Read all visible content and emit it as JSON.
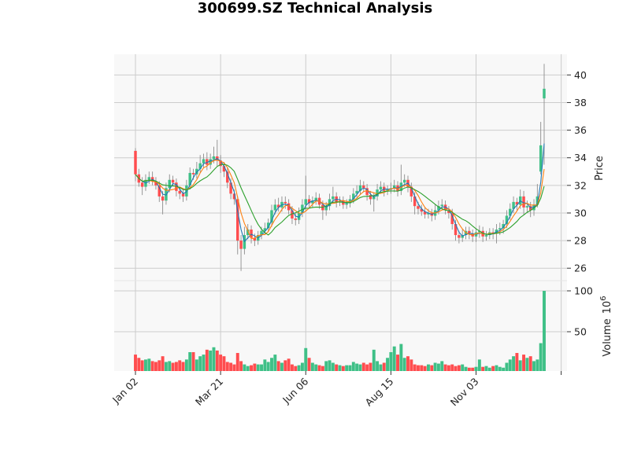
{
  "title": "300699.SZ Technical Analysis",
  "chart_data": {
    "type": "candlestick",
    "title": "300699.SZ Technical Analysis",
    "x_tick_labels": [
      "Jan 02",
      "Mar 21",
      "Jun 06",
      "Aug 15",
      "Nov 03",
      ""
    ],
    "price_panel": {
      "ylabel": "Price",
      "ylim": [
        25.1,
        41.5
      ],
      "yticks": [
        26,
        28,
        30,
        32,
        34,
        36,
        38,
        40
      ],
      "moving_average_colors": [
        "#1f77b4",
        "#ff7f0e",
        "#2ca02c"
      ],
      "up_color": "#3fc087",
      "down_color": "#ff4d4f",
      "open": [
        34.5,
        32.8,
        32.2,
        31.9,
        32.4,
        32.6,
        32.3,
        32.0,
        31.2,
        30.9,
        31.8,
        32.4,
        32.2,
        31.6,
        31.4,
        31.2,
        32.0,
        32.9,
        32.8,
        33.2,
        33.6,
        33.9,
        33.5,
        33.9,
        34.1,
        33.8,
        33.4,
        33.0,
        32.2,
        31.4,
        31.0,
        28.0,
        27.4,
        28.4,
        28.8,
        28.2,
        28.0,
        28.4,
        28.7,
        28.9,
        29.3,
        30.2,
        30.6,
        30.4,
        30.8,
        30.7,
        30.2,
        29.6,
        29.5,
        30.0,
        30.6,
        31.0,
        30.7,
        30.9,
        31.1,
        30.6,
        30.2,
        30.5,
        31.0,
        31.2,
        30.8,
        30.9,
        30.6,
        30.7,
        31.0,
        31.4,
        31.6,
        32.0,
        31.8,
        31.3,
        31.0,
        31.2,
        31.7,
        31.9,
        31.6,
        31.7,
        31.8,
        32.0,
        31.6,
        32.2,
        32.4,
        31.9,
        31.2,
        30.5,
        30.3,
        30.1,
        29.9,
        30.0,
        29.8,
        30.2,
        30.5,
        30.6,
        30.2,
        30.0,
        29.2,
        28.4,
        28.2,
        28.4,
        28.7,
        28.5,
        28.3,
        28.6,
        28.7,
        28.3,
        28.4,
        28.6,
        28.5,
        28.8,
        28.9,
        29.2,
        29.8,
        30.3,
        30.8,
        30.6,
        31.2,
        30.4,
        30.5,
        30.2,
        30.6,
        33.0,
        38.3
      ],
      "high": [
        34.7,
        33.2,
        32.6,
        32.8,
        33.0,
        33.0,
        32.6,
        32.3,
        31.6,
        32.2,
        32.8,
        32.7,
        32.5,
        31.9,
        31.7,
        32.4,
        33.3,
        33.2,
        33.7,
        34.2,
        34.3,
        34.4,
        34.3,
        34.8,
        35.3,
        34.2,
        33.7,
        33.3,
        32.5,
        31.7,
        31.2,
        28.4,
        29.0,
        29.2,
        29.1,
        28.5,
        28.7,
        29.0,
        29.3,
        29.6,
        30.6,
        31.0,
        31.1,
        31.2,
        31.2,
        31.0,
        30.5,
        30.0,
        30.4,
        31.0,
        32.7,
        31.3,
        31.2,
        31.5,
        31.4,
        30.9,
        30.8,
        31.4,
        31.9,
        31.5,
        31.2,
        31.2,
        31.0,
        31.3,
        31.8,
        32.0,
        32.4,
        32.3,
        32.1,
        31.6,
        31.5,
        32.1,
        32.3,
        32.2,
        32.0,
        32.2,
        32.4,
        32.3,
        33.5,
        32.8,
        32.7,
        32.2,
        31.5,
        30.8,
        30.6,
        30.4,
        30.3,
        30.3,
        30.6,
        30.9,
        31.0,
        30.9,
        30.5,
        30.3,
        29.5,
        28.7,
        28.8,
        29.0,
        29.0,
        28.8,
        28.9,
        29.1,
        29.0,
        28.7,
        28.9,
        28.9,
        29.2,
        29.3,
        29.5,
        30.2,
        30.7,
        31.2,
        31.1,
        31.7,
        31.6,
        30.9,
        30.8,
        31.0,
        32.1,
        36.6,
        40.8
      ],
      "low": [
        32.3,
        31.9,
        31.3,
        31.6,
        32.1,
        32.0,
        31.7,
        30.8,
        29.9,
        30.6,
        31.5,
        31.9,
        31.2,
        31.0,
        30.8,
        30.9,
        31.7,
        32.4,
        32.5,
        32.9,
        33.3,
        33.1,
        33.2,
        33.6,
        33.4,
        32.9,
        32.6,
        31.8,
        31.0,
        30.6,
        27.0,
        25.8,
        27.0,
        28.1,
        27.8,
        27.6,
        27.7,
        28.1,
        28.4,
        28.6,
        29.0,
        29.9,
        30.1,
        30.1,
        30.3,
        29.9,
        29.2,
        29.1,
        29.2,
        29.7,
        30.2,
        30.4,
        30.4,
        30.6,
        30.3,
        29.5,
        29.8,
        30.2,
        30.7,
        30.4,
        30.5,
        30.3,
        30.3,
        30.4,
        30.7,
        31.1,
        31.3,
        31.5,
        30.9,
        30.6,
        30.1,
        30.9,
        31.4,
        31.2,
        31.3,
        31.4,
        31.5,
        31.2,
        31.3,
        31.9,
        31.5,
        30.8,
        29.9,
        29.9,
        29.8,
        29.6,
        29.6,
        29.4,
        29.5,
        29.9,
        30.2,
        29.9,
        29.6,
        28.8,
        28.0,
        27.8,
        27.9,
        28.1,
        28.1,
        27.9,
        27.9,
        28.2,
        27.9,
        28.0,
        28.1,
        28.1,
        27.8,
        28.4,
        28.5,
        28.9,
        29.5,
        30.0,
        30.2,
        30.3,
        29.9,
        30.0,
        29.7,
        29.8,
        30.4,
        32.8,
        33.5
      ],
      "close": [
        32.8,
        32.2,
        31.9,
        32.4,
        32.6,
        32.3,
        32.0,
        31.2,
        30.9,
        31.8,
        32.4,
        32.2,
        31.6,
        31.4,
        31.2,
        32.0,
        32.9,
        32.8,
        33.2,
        33.6,
        33.9,
        33.5,
        33.9,
        34.1,
        33.8,
        33.4,
        33.0,
        32.2,
        31.4,
        31.0,
        28.0,
        27.4,
        28.4,
        28.8,
        28.2,
        28.0,
        28.4,
        28.7,
        28.9,
        29.3,
        30.2,
        30.6,
        30.4,
        30.8,
        30.7,
        30.2,
        29.6,
        29.5,
        30.0,
        30.6,
        31.0,
        30.7,
        30.9,
        31.1,
        30.6,
        30.2,
        30.5,
        31.0,
        31.2,
        30.8,
        30.9,
        30.6,
        30.7,
        31.0,
        31.4,
        31.6,
        32.0,
        31.8,
        31.3,
        31.0,
        31.2,
        31.7,
        31.9,
        31.6,
        31.7,
        31.8,
        32.0,
        31.6,
        32.2,
        32.4,
        31.9,
        31.2,
        30.5,
        30.3,
        30.1,
        29.9,
        30.0,
        29.8,
        30.2,
        30.5,
        30.6,
        30.2,
        30.0,
        29.2,
        28.4,
        28.2,
        28.4,
        28.7,
        28.5,
        28.3,
        28.6,
        28.7,
        28.3,
        28.4,
        28.6,
        28.5,
        28.8,
        28.9,
        29.2,
        29.8,
        30.3,
        30.8,
        30.6,
        31.2,
        30.4,
        30.5,
        30.2,
        30.6,
        31.2,
        34.9,
        39.0
      ]
    },
    "volume_panel": {
      "ylabel": "Volume",
      "unit_label": "10",
      "unit_exponent": "6",
      "ylim": [
        1.9,
        112.5
      ],
      "yticks": [
        50,
        100
      ],
      "volume": [
        22,
        18,
        15,
        16,
        17,
        14,
        13,
        15,
        20,
        13,
        14,
        12,
        13,
        15,
        13,
        16,
        25,
        25,
        16,
        20,
        22,
        28,
        27,
        31,
        27,
        22,
        20,
        13,
        12,
        10,
        24,
        14,
        10,
        8,
        9,
        11,
        10,
        10,
        16,
        13,
        18,
        22,
        14,
        12,
        15,
        17,
        10,
        8,
        9,
        12,
        30,
        18,
        12,
        10,
        9,
        8,
        14,
        15,
        12,
        10,
        9,
        8,
        9,
        9,
        13,
        11,
        10,
        12,
        10,
        12,
        28,
        14,
        10,
        12,
        18,
        25,
        32,
        22,
        35,
        18,
        20,
        16,
        10,
        9,
        9,
        8,
        10,
        9,
        12,
        11,
        14,
        10,
        9,
        10,
        8,
        9,
        10,
        7,
        6,
        6,
        7,
        16,
        7,
        8,
        6,
        8,
        9,
        7,
        6,
        12,
        16,
        20,
        24,
        15,
        22,
        18,
        20,
        14,
        16,
        36,
        100
      ]
    },
    "grid": true
  }
}
